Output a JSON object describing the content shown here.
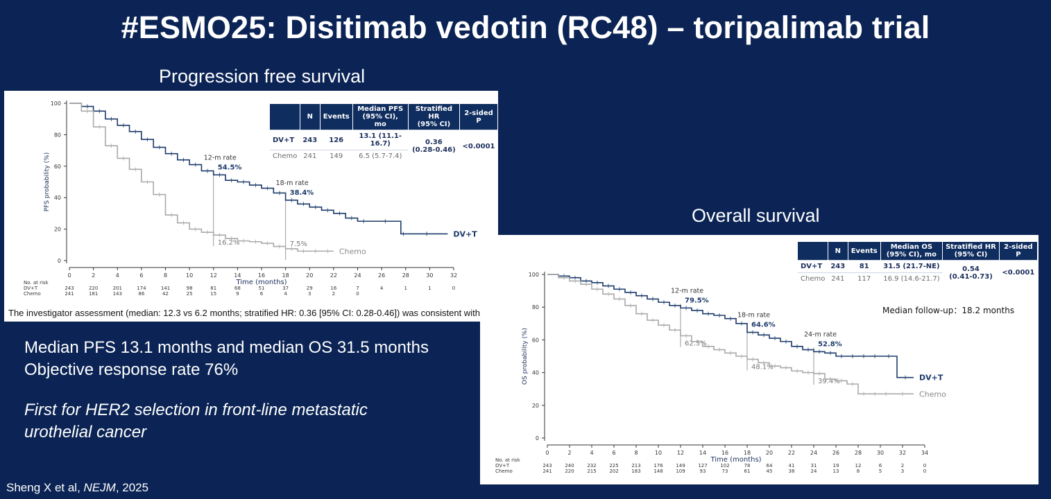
{
  "title": "#ESMO25: Disitimab vedotin (RC48) – toripalimab trial",
  "pfs_heading": "Progression free survival",
  "os_heading": "Overall survival",
  "footnote": "The investigator assessment (median: 12.3 vs 6.2 months; stratified HR: 0.36 [95% CI: 0.28-0.46]) was consistent with BIRC.",
  "summary_lines": [
    "Median PFS 13.1 months and median OS 31.5 months",
    "Objective response rate 76%"
  ],
  "italic_lines": [
    "First for HER2 selection in front-line metastatic",
    "urothelial cancer"
  ],
  "citation_prefix": "Sheng X et al, ",
  "citation_journal": "NEJM",
  "citation_suffix": ", 2025",
  "colors": {
    "background": "#0b2455",
    "dvt": "#1b3a6b",
    "chemo": "#a9a9a9",
    "table_header": "#0f2d5e"
  },
  "pfs_table": {
    "headers": [
      "",
      "N",
      "Events",
      "Median PFS\n(95% CI), mo",
      "Stratified HR\n(95% CI)",
      "2-sided\nP"
    ],
    "rows": [
      {
        "arm": "DV+T",
        "n": "243",
        "events": "126",
        "median": "13.1 (11.1-16.7)"
      },
      {
        "arm": "Chemo",
        "n": "241",
        "events": "149",
        "median": "6.5 (5.7-7.4)"
      }
    ],
    "hr": "0.36\n(0.28-0.46)",
    "p": "<0.0001"
  },
  "os_table": {
    "headers": [
      "",
      "N",
      "Events",
      "Median OS\n(95% CI), mo",
      "Stratified HR\n(95% CI)",
      "2-sided\nP"
    ],
    "rows": [
      {
        "arm": "DV+T",
        "n": "243",
        "events": "81",
        "median": "31.5 (21.7-NE)"
      },
      {
        "arm": "Chemo",
        "n": "241",
        "events": "117",
        "median": "16.9 (14.6-21.7)"
      }
    ],
    "hr": "0.54\n(0.41-0.73)",
    "p": "<0.0001",
    "follow_up": "Median follow-up：18.2 months"
  },
  "chart_data": [
    {
      "type": "line",
      "title": "Progression free survival",
      "xlabel": "Time (months)",
      "ylabel": "PFS probability (%)",
      "xlim": [
        0,
        32
      ],
      "ylim": [
        0,
        100
      ],
      "xticks": [
        0,
        2,
        4,
        6,
        8,
        10,
        12,
        14,
        16,
        18,
        20,
        22,
        24,
        26,
        28,
        30,
        32
      ],
      "yticks": [
        0,
        20,
        40,
        60,
        80,
        100
      ],
      "series": [
        {
          "name": "DV+T",
          "x": [
            0,
            1,
            2,
            3,
            4,
            5,
            6,
            7,
            8,
            9,
            10,
            11,
            12,
            13,
            14,
            15,
            16,
            17,
            18,
            19,
            20,
            21,
            22,
            23,
            24,
            25,
            27.6,
            28,
            31.5
          ],
          "y": [
            100,
            98,
            95,
            90,
            86,
            82,
            77,
            72,
            68,
            64,
            61,
            57,
            54.5,
            51,
            50,
            48,
            46,
            43,
            38.4,
            36,
            34,
            32,
            30,
            27,
            25,
            25,
            17,
            17,
            17
          ]
        },
        {
          "name": "Chemo",
          "x": [
            0,
            1,
            2,
            3,
            4,
            5,
            6,
            7,
            8,
            9,
            10,
            11,
            12,
            13,
            14,
            15,
            16,
            17,
            18,
            19,
            20,
            21,
            22
          ],
          "y": [
            100,
            95,
            85,
            73,
            65,
            58,
            50,
            42,
            29,
            24,
            20,
            18,
            16.2,
            14,
            12.5,
            12,
            11,
            9,
            7.5,
            6,
            6,
            6,
            6
          ]
        }
      ],
      "annotations": [
        {
          "label": "12-m rate",
          "x": 12,
          "value": "54.5%",
          "other": "16.2%"
        },
        {
          "label": "18-m rate",
          "x": 18,
          "value": "38.4%",
          "other": "7.5%"
        }
      ],
      "legend": [
        "DV+T",
        "Chemo"
      ],
      "risk_table": {
        "label": "No. at risk",
        "arms": [
          {
            "name": "DV+T",
            "values": [
              "243",
              "220",
              "201",
              "174",
              "141",
              "98",
              "81",
              "68",
              "51",
              "37",
              "29",
              "16",
              "7",
              "4",
              "1",
              "1",
              "0"
            ]
          },
          {
            "name": "Chemo",
            "values": [
              "241",
              "181",
              "143",
              "86",
              "42",
              "25",
              "15",
              "9",
              "6",
              "4",
              "3",
              "2",
              "0",
              "",
              "",
              "",
              ""
            ]
          }
        ]
      }
    },
    {
      "type": "line",
      "title": "Overall survival",
      "xlabel": "Time (months)",
      "ylabel": "OS probability (%)",
      "xlim": [
        0,
        34
      ],
      "ylim": [
        0,
        100
      ],
      "xticks": [
        0,
        2,
        4,
        6,
        8,
        10,
        12,
        14,
        16,
        18,
        20,
        22,
        24,
        26,
        28,
        30,
        32,
        34
      ],
      "yticks": [
        0,
        20,
        40,
        60,
        80,
        100
      ],
      "series": [
        {
          "name": "DV+T",
          "x": [
            0,
            1,
            2,
            3,
            4,
            5,
            6,
            7,
            8,
            9,
            10,
            11,
            12,
            13,
            14,
            15,
            16,
            17,
            18,
            19,
            20,
            21,
            22,
            23,
            24,
            25,
            26,
            27,
            28,
            29,
            30,
            31.5,
            33
          ],
          "y": [
            100,
            99,
            98,
            96,
            95,
            93,
            91,
            89,
            87,
            85,
            83,
            81,
            79.5,
            78,
            76,
            75,
            73,
            70,
            64.6,
            63,
            61,
            59,
            56,
            54,
            52.8,
            52,
            50,
            50,
            50,
            50,
            50,
            37,
            37
          ]
        },
        {
          "name": "Chemo",
          "x": [
            0,
            1,
            2,
            3,
            4,
            5,
            6,
            7,
            8,
            9,
            10,
            11,
            12,
            13,
            14,
            15,
            16,
            17,
            18,
            19,
            20,
            21,
            22,
            23,
            24,
            25,
            26,
            27,
            28,
            29,
            30,
            31,
            33
          ],
          "y": [
            100,
            98,
            96,
            94,
            91,
            88,
            85,
            81,
            76,
            72,
            69,
            66,
            62.5,
            59,
            56,
            54,
            52,
            50,
            48.1,
            46,
            44,
            43,
            41,
            40,
            39.4,
            36,
            35,
            33,
            27,
            27,
            27,
            27,
            27
          ]
        }
      ],
      "annotations": [
        {
          "label": "12-m rate",
          "x": 12,
          "value": "79.5%",
          "other": "62.5%"
        },
        {
          "label": "18-m rate",
          "x": 18,
          "value": "64.6%",
          "other": "48.1%"
        },
        {
          "label": "24-m rate",
          "x": 24,
          "value": "52.8%",
          "other": "39.4%"
        }
      ],
      "legend": [
        "DV+T",
        "Chemo"
      ],
      "risk_table": {
        "label": "No. at risk",
        "arms": [
          {
            "name": "DV+T",
            "values": [
              "243",
              "240",
              "232",
              "225",
              "213",
              "176",
              "149",
              "127",
              "102",
              "78",
              "64",
              "41",
              "31",
              "19",
              "12",
              "6",
              "2",
              "0"
            ]
          },
          {
            "name": "Chemo",
            "values": [
              "241",
              "220",
              "215",
              "202",
              "183",
              "148",
              "109",
              "93",
              "73",
              "61",
              "45",
              "38",
              "24",
              "13",
              "8",
              "5",
              "3",
              "0"
            ]
          }
        ]
      }
    }
  ]
}
